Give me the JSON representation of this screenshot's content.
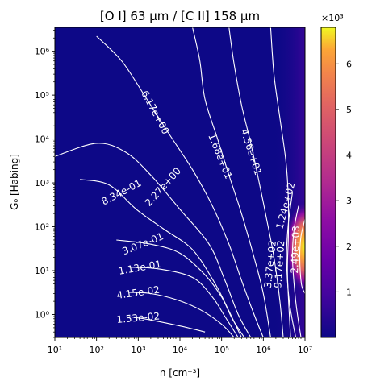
{
  "chart_data": {
    "type": "heatmap",
    "title": "[O I] 63 μm / [C II] 158 μm",
    "xlabel": "n [cm⁻³]",
    "ylabel": "G₀ [Habing]",
    "x_scale": "log",
    "y_scale": "log",
    "xlim": [
      10,
      10000000
    ],
    "ylim": [
      0.3,
      3500000
    ],
    "x_ticks": [
      {
        "value": 10,
        "label": "10¹"
      },
      {
        "value": 100,
        "label": "10²"
      },
      {
        "value": 1000,
        "label": "10³"
      },
      {
        "value": 10000,
        "label": "10⁴"
      },
      {
        "value": 100000,
        "label": "10⁵"
      },
      {
        "value": 1000000,
        "label": "10⁶"
      },
      {
        "value": 10000000,
        "label": "10⁷"
      }
    ],
    "y_ticks": [
      {
        "value": 1,
        "label": "10⁰"
      },
      {
        "value": 10,
        "label": "10¹"
      },
      {
        "value": 100,
        "label": "10²"
      },
      {
        "value": 1000,
        "label": "10³"
      },
      {
        "value": 10000,
        "label": "10⁴"
      },
      {
        "value": 100000,
        "label": "10⁵"
      },
      {
        "value": 1000000,
        "label": "10⁶"
      }
    ],
    "colormap": "plasma",
    "colorbar": {
      "range": [
        0,
        6800
      ],
      "multiplier_label": "×10³",
      "ticks": [
        {
          "value": 1000,
          "label": "1"
        },
        {
          "value": 2000,
          "label": "2"
        },
        {
          "value": 3000,
          "label": "3"
        },
        {
          "value": 4000,
          "label": "4"
        },
        {
          "value": 5000,
          "label": "5"
        },
        {
          "value": 6000,
          "label": "6"
        }
      ]
    },
    "hotspot": {
      "n": 10000000,
      "G0": 35,
      "peak": 6800
    },
    "contours": [
      {
        "label": "1.53e-02",
        "points": [
          [
            600,
            0.9
          ],
          [
            2000,
            0.75
          ],
          [
            10000,
            0.55
          ],
          [
            40000,
            0.4
          ]
        ],
        "label_at": [
          1000,
          0.82
        ],
        "label_angle": -5
      },
      {
        "label": "4.15e-02",
        "points": [
          [
            600,
            3.2
          ],
          [
            2000,
            3.0
          ],
          [
            8000,
            2.2
          ],
          [
            30000,
            1.3
          ],
          [
            100000,
            0.6
          ],
          [
            200000,
            0.3
          ]
        ],
        "label_at": [
          1000,
          3.1
        ],
        "label_angle": -8
      },
      {
        "label": "1.13e-01",
        "points": [
          [
            600,
            12
          ],
          [
            3000,
            11
          ],
          [
            20000,
            7
          ],
          [
            60000,
            2.5
          ],
          [
            120000,
            0.9
          ],
          [
            250000,
            0.3
          ]
        ],
        "label_at": [
          1100,
          11.5
        ],
        "label_angle": -10
      },
      {
        "label": "3.07e-01",
        "points": [
          [
            300,
            50
          ],
          [
            2000,
            40
          ],
          [
            10000,
            25
          ],
          [
            40000,
            8
          ],
          [
            100000,
            2.5
          ],
          [
            180000,
            0.8
          ],
          [
            350000,
            0.3
          ]
        ],
        "label_at": [
          1300,
          40
        ],
        "label_angle": -22
      },
      {
        "label": "8.34e-01",
        "points": [
          [
            40,
            1200
          ],
          [
            200,
            900
          ],
          [
            900,
            250
          ],
          [
            4000,
            90
          ],
          [
            20000,
            30
          ],
          [
            70000,
            5
          ],
          [
            150000,
            1.2
          ],
          [
            300000,
            0.3
          ]
        ],
        "label_at": [
          400,
          600
        ],
        "label_angle": -28
      },
      {
        "label": "2.27e+00",
        "points": [
          [
            10,
            4000
          ],
          [
            100,
            8000
          ],
          [
            500,
            5000
          ],
          [
            2000,
            1500
          ],
          [
            10000,
            250
          ],
          [
            50000,
            40
          ],
          [
            120000,
            6
          ],
          [
            250000,
            1
          ],
          [
            500000,
            0.3
          ]
        ],
        "label_at": [
          4000,
          800
        ],
        "label_angle": -48
      },
      {
        "label": "6.17e+00",
        "points": [
          [
            100,
            2200000
          ],
          [
            400,
            600000
          ],
          [
            1500,
            90000
          ],
          [
            5000,
            15000
          ],
          [
            20000,
            2000
          ],
          [
            60000,
            300
          ],
          [
            150000,
            40
          ],
          [
            300000,
            6
          ],
          [
            600000,
            1
          ],
          [
            1000000,
            0.3
          ]
        ],
        "label_at": [
          2500,
          40000
        ],
        "label_angle": 62
      },
      {
        "label": "1.68e+01",
        "points": [
          [
            20000,
            3500000
          ],
          [
            30000,
            600000
          ],
          [
            40000,
            80000
          ],
          [
            80000,
            10000
          ],
          [
            150000,
            1500
          ],
          [
            300000,
            200
          ],
          [
            600000,
            20
          ],
          [
            1000000,
            3
          ],
          [
            1500000,
            0.3
          ]
        ],
        "label_at": [
          90000,
          4000
        ],
        "label_angle": 68
      },
      {
        "label": "4.56e+01",
        "points": [
          [
            150000,
            3500000
          ],
          [
            200000,
            500000
          ],
          [
            300000,
            60000
          ],
          [
            500000,
            8000
          ],
          [
            800000,
            1000
          ],
          [
            1200000,
            150
          ],
          [
            1800000,
            20
          ],
          [
            2500000,
            2
          ],
          [
            3000000,
            0.3
          ]
        ],
        "label_at": [
          500000,
          5000
        ],
        "label_angle": 72
      },
      {
        "label": "1.24e+02",
        "points": [
          [
            1500000,
            3500000
          ],
          [
            1800000,
            300000
          ],
          [
            2500000,
            30000
          ],
          [
            3500000,
            3000
          ],
          [
            4000000,
            400
          ],
          [
            4000000,
            60
          ],
          [
            3800000,
            8
          ],
          [
            4500000,
            0.3
          ]
        ],
        "label_at": [
          3500000,
          300
        ],
        "label_angle": -75
      },
      {
        "label": "3.37e+02",
        "points": [
          [
            5000000,
            600
          ],
          [
            4000000,
            120
          ],
          [
            3600000,
            20
          ],
          [
            4200000,
            2
          ],
          [
            6000000,
            0.3
          ]
        ],
        "label_at": [
          1500000,
          14
        ],
        "label_angle": -84
      },
      {
        "label": "9.17e+02",
        "points": [
          [
            7000000,
            300
          ],
          [
            5500000,
            90
          ],
          [
            5000000,
            20
          ],
          [
            6000000,
            2
          ],
          [
            8000000,
            0.3
          ]
        ],
        "label_at": [
          2500000,
          14
        ],
        "label_angle": -86
      },
      {
        "label": "2.49e+03",
        "points": [
          [
            10000000,
            150
          ],
          [
            8000000,
            60
          ],
          [
            7500000,
            20
          ],
          [
            8200000,
            5
          ],
          [
            10000000,
            3
          ]
        ],
        "label_at": [
          6000000,
          30
        ],
        "label_angle": -88
      }
    ]
  }
}
